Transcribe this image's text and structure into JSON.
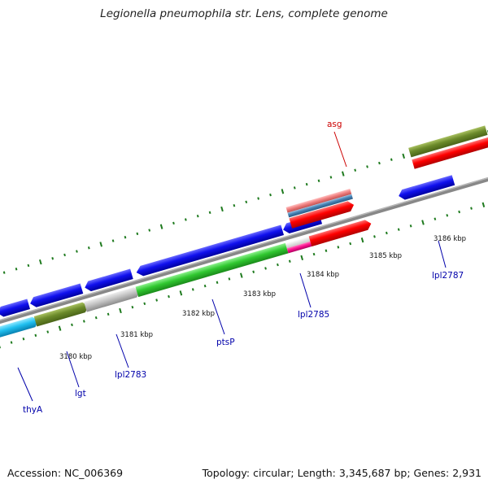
{
  "title": "Legionella pneumophila str. Lens, complete genome",
  "footer": {
    "accession": "Accession: NC_006369",
    "topology": "Topology: circular; Length: 3,345,687 bp; Genes: 2,931"
  },
  "colors": {
    "backbone": "#8a8a8a",
    "tick": "#1e7a1e",
    "label_blue": "#0000aa",
    "label_red": "#cc0000"
  },
  "tick_labels": [
    "3180 kbp",
    "3181 kbp",
    "3182 kbp",
    "3183 kbp",
    "3184 kbp",
    "3185 kbp",
    "3186 kbp"
  ],
  "gene_labels": [
    "thyA",
    "lgt",
    "lpl2783",
    "ptsP",
    "lpl2785",
    "asg",
    "lpl2787"
  ]
}
